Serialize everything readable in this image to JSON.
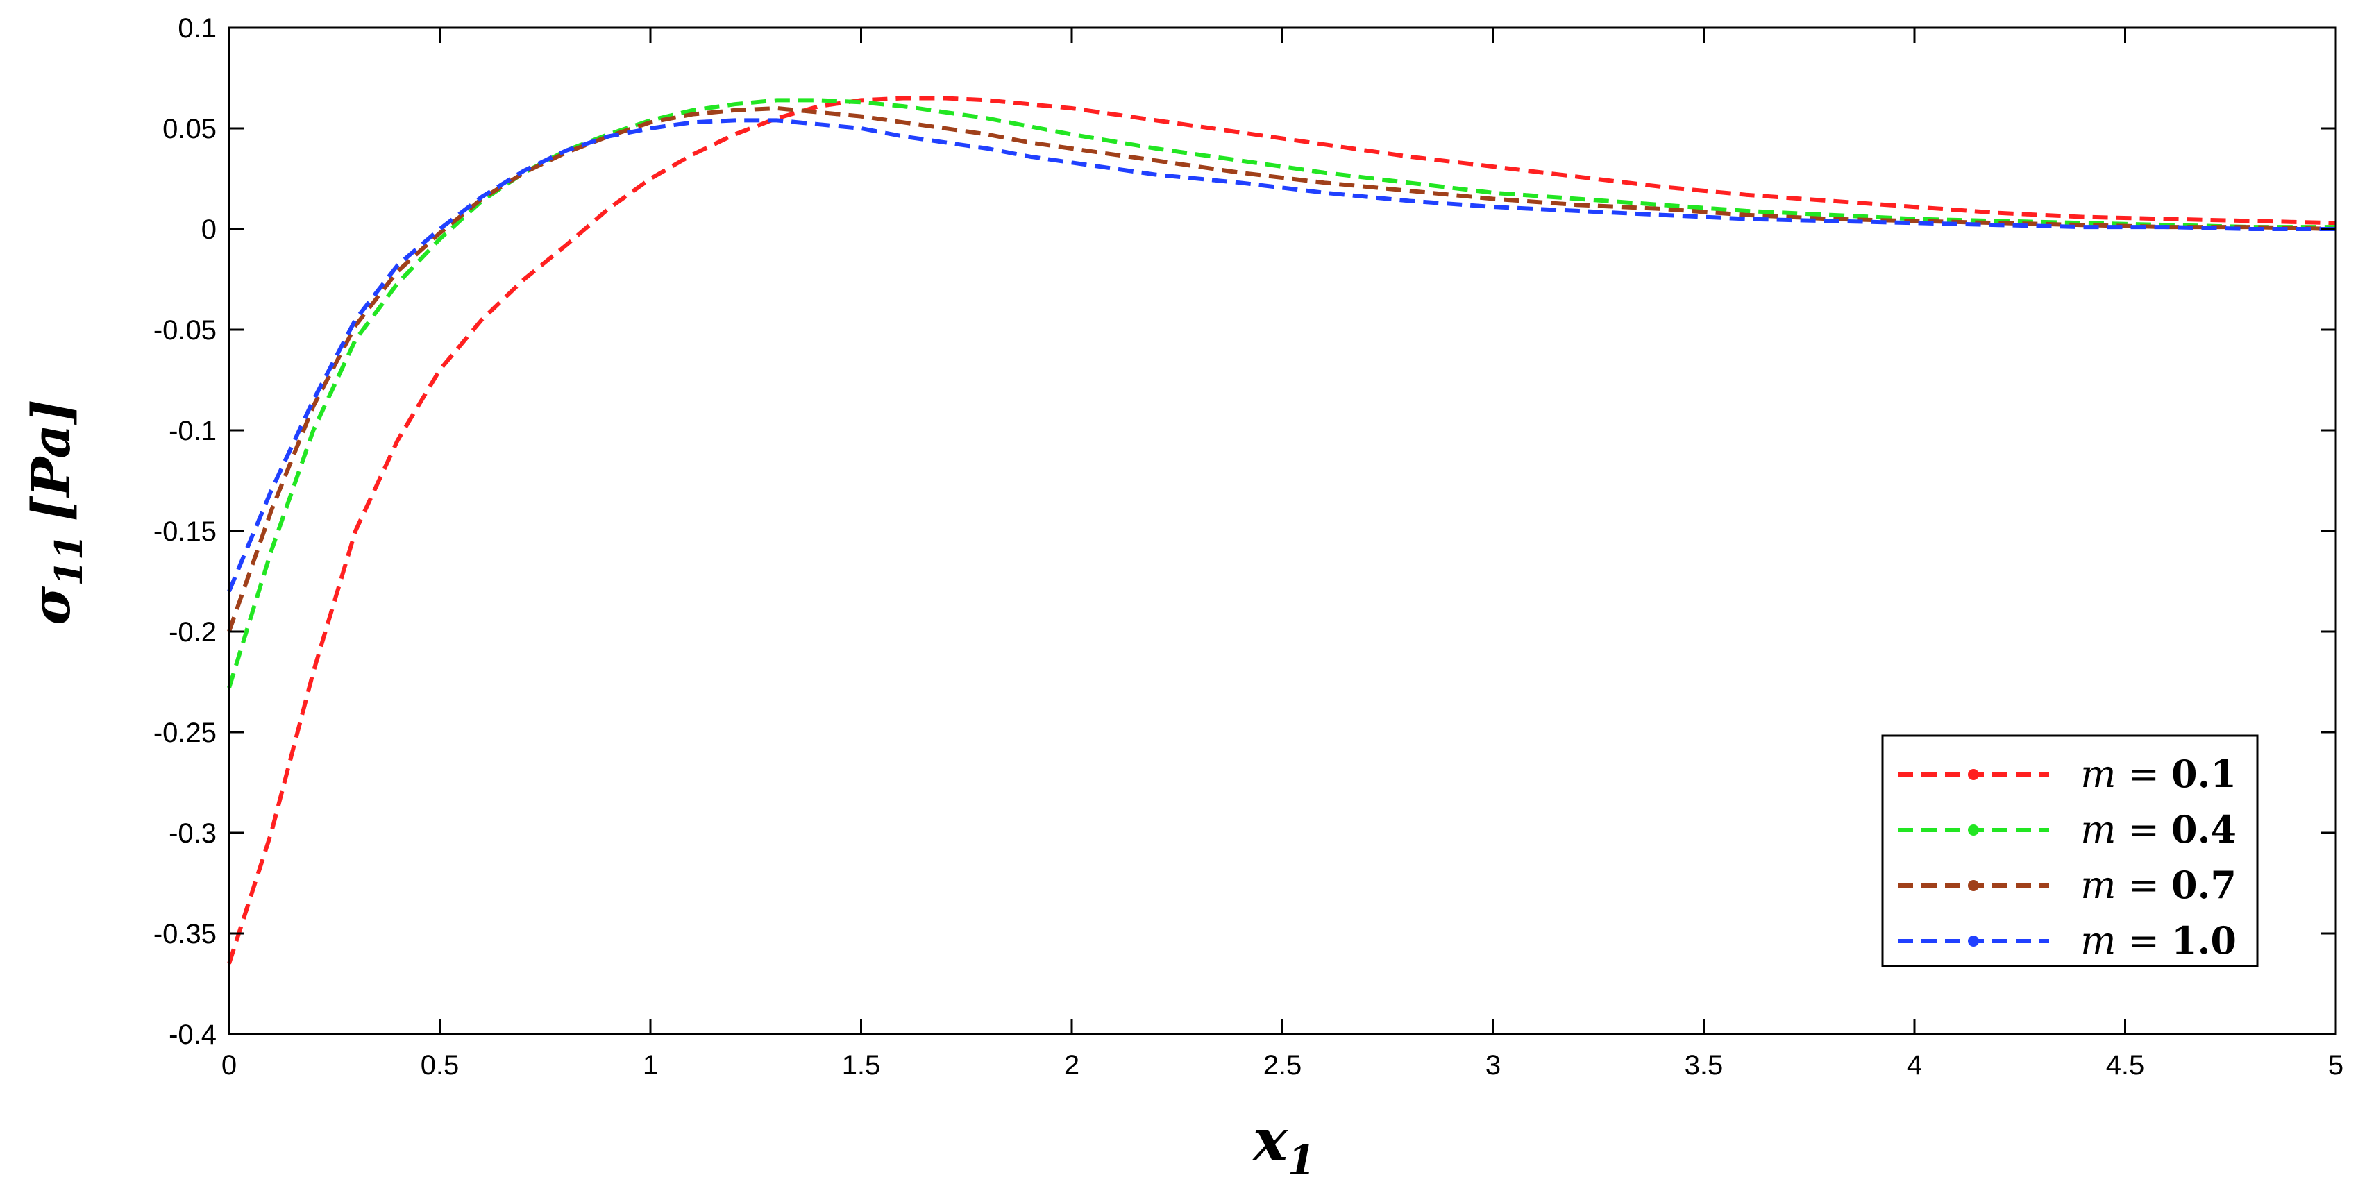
{
  "chart_data": {
    "type": "line",
    "xlabel_main": "x",
    "xlabel_sub": "1",
    "ylabel_main": "σ",
    "ylabel_sub": "11",
    "ylabel_unit": "[Pa]",
    "xlim": [
      0,
      5
    ],
    "ylim": [
      -0.4,
      0.1
    ],
    "grid": false,
    "legend_position": "lower-right",
    "x_ticks": [
      "0",
      "0.5",
      "1",
      "1.5",
      "2",
      "2.5",
      "3",
      "3.5",
      "4",
      "4.5",
      "5"
    ],
    "y_ticks": [
      "0.1",
      "0.05",
      "0",
      "-0.05",
      "-0.1",
      "-0.15",
      "-0.2",
      "-0.25",
      "-0.3",
      "-0.35",
      "-0.4"
    ],
    "x_tick_values": [
      0,
      0.5,
      1,
      1.5,
      2,
      2.5,
      3,
      3.5,
      4,
      4.5,
      5
    ],
    "y_tick_values": [
      0.1,
      0.05,
      0,
      -0.05,
      -0.1,
      -0.15,
      -0.2,
      -0.25,
      -0.3,
      -0.35,
      -0.4
    ],
    "series": [
      {
        "name": "m = 0.1",
        "label_var": "m",
        "label_val": "0.1",
        "color": "#ff2020",
        "x": [
          0,
          0.1,
          0.2,
          0.3,
          0.4,
          0.5,
          0.6,
          0.7,
          0.8,
          0.9,
          1.0,
          1.1,
          1.2,
          1.3,
          1.4,
          1.5,
          1.6,
          1.7,
          1.8,
          1.9,
          2.0,
          2.2,
          2.4,
          2.6,
          2.8,
          3.0,
          3.2,
          3.4,
          3.6,
          3.8,
          4.0,
          4.2,
          4.4,
          4.6,
          4.8,
          5.0
        ],
        "y": [
          -0.365,
          -0.3,
          -0.22,
          -0.15,
          -0.105,
          -0.07,
          -0.045,
          -0.025,
          -0.008,
          0.01,
          0.025,
          0.037,
          0.047,
          0.055,
          0.061,
          0.064,
          0.065,
          0.065,
          0.064,
          0.062,
          0.06,
          0.054,
          0.048,
          0.042,
          0.036,
          0.031,
          0.026,
          0.021,
          0.017,
          0.014,
          0.011,
          0.008,
          0.006,
          0.005,
          0.004,
          0.003
        ]
      },
      {
        "name": "m = 0.4",
        "label_var": "m",
        "label_val": "0.4",
        "color": "#22e622",
        "x": [
          0,
          0.1,
          0.2,
          0.3,
          0.4,
          0.5,
          0.6,
          0.7,
          0.8,
          0.9,
          1.0,
          1.1,
          1.2,
          1.3,
          1.4,
          1.5,
          1.6,
          1.7,
          1.8,
          1.9,
          2.0,
          2.2,
          2.4,
          2.6,
          2.8,
          3.0,
          3.2,
          3.4,
          3.6,
          3.8,
          4.0,
          4.2,
          4.4,
          4.6,
          4.8,
          5.0
        ],
        "y": [
          -0.228,
          -0.16,
          -0.1,
          -0.055,
          -0.027,
          -0.005,
          0.014,
          0.028,
          0.039,
          0.047,
          0.054,
          0.059,
          0.062,
          0.064,
          0.064,
          0.063,
          0.061,
          0.058,
          0.055,
          0.051,
          0.047,
          0.04,
          0.034,
          0.028,
          0.023,
          0.018,
          0.015,
          0.012,
          0.009,
          0.007,
          0.005,
          0.004,
          0.003,
          0.002,
          0.001,
          0.001
        ]
      },
      {
        "name": "m = 0.7",
        "label_var": "m",
        "label_val": "0.7",
        "color": "#a0401a",
        "x": [
          0,
          0.1,
          0.2,
          0.3,
          0.4,
          0.5,
          0.6,
          0.7,
          0.8,
          0.9,
          1.0,
          1.1,
          1.2,
          1.3,
          1.4,
          1.5,
          1.6,
          1.7,
          1.8,
          1.9,
          2.0,
          2.2,
          2.4,
          2.6,
          2.8,
          3.0,
          3.2,
          3.4,
          3.6,
          3.8,
          4.0,
          4.2,
          4.4,
          4.6,
          4.8,
          5.0
        ],
        "y": [
          -0.2,
          -0.14,
          -0.088,
          -0.048,
          -0.021,
          -0.002,
          0.015,
          0.028,
          0.038,
          0.046,
          0.053,
          0.057,
          0.059,
          0.06,
          0.058,
          0.056,
          0.053,
          0.05,
          0.047,
          0.043,
          0.04,
          0.034,
          0.028,
          0.023,
          0.019,
          0.015,
          0.012,
          0.01,
          0.007,
          0.005,
          0.004,
          0.003,
          0.002,
          0.001,
          0.001,
          0.0
        ]
      },
      {
        "name": "m = 1.0",
        "label_var": "m",
        "label_val": "1.0",
        "color": "#2040ff",
        "x": [
          0,
          0.1,
          0.2,
          0.3,
          0.4,
          0.5,
          0.6,
          0.7,
          0.8,
          0.9,
          1.0,
          1.1,
          1.2,
          1.3,
          1.4,
          1.5,
          1.6,
          1.7,
          1.8,
          1.9,
          2.0,
          2.2,
          2.4,
          2.6,
          2.8,
          3.0,
          3.2,
          3.4,
          3.6,
          3.8,
          4.0,
          4.2,
          4.4,
          4.6,
          4.8,
          5.0
        ],
        "y": [
          -0.18,
          -0.13,
          -0.085,
          -0.045,
          -0.018,
          0.0,
          0.016,
          0.029,
          0.039,
          0.046,
          0.05,
          0.053,
          0.054,
          0.054,
          0.052,
          0.05,
          0.046,
          0.043,
          0.04,
          0.036,
          0.033,
          0.027,
          0.023,
          0.018,
          0.014,
          0.011,
          0.009,
          0.007,
          0.005,
          0.004,
          0.003,
          0.002,
          0.001,
          0.001,
          0.0,
          0.0
        ]
      }
    ]
  }
}
